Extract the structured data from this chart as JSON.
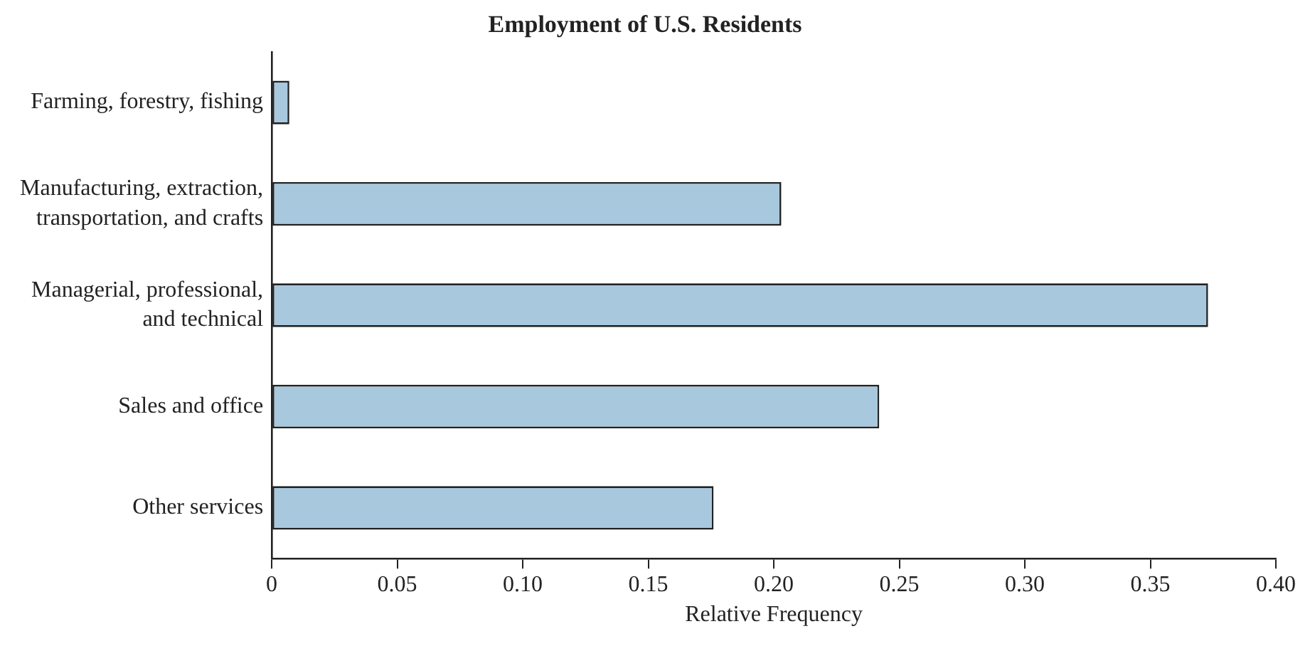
{
  "chart_data": {
    "type": "bar",
    "orientation": "horizontal",
    "title": "Employment of U.S. Residents",
    "xlabel": "Relative Frequency",
    "categories": [
      "Farming, forestry, fishing",
      "Manufacturing, extraction, transportation, and crafts",
      "Managerial, professional, and technical",
      "Sales and office",
      "Other services"
    ],
    "values": [
      0.007,
      0.203,
      0.373,
      0.242,
      0.176
    ],
    "color": "#a8c8de",
    "xlim": [
      0,
      0.4
    ],
    "xticks": [
      0,
      {
        "value": 0.05,
        "label": "0.05"
      },
      {
        "value": 0.1,
        "label": "0.10"
      },
      {
        "value": 0.15,
        "label": "0.15"
      },
      {
        "value": 0.2,
        "label": "0.20"
      },
      {
        "value": 0.25,
        "label": "0.25"
      },
      {
        "value": 0.3,
        "label": "0.30"
      },
      {
        "value": 0.35,
        "label": "0.35"
      },
      {
        "value": 0.4,
        "label": "0.40"
      }
    ],
    "grid": false,
    "legend": false
  }
}
